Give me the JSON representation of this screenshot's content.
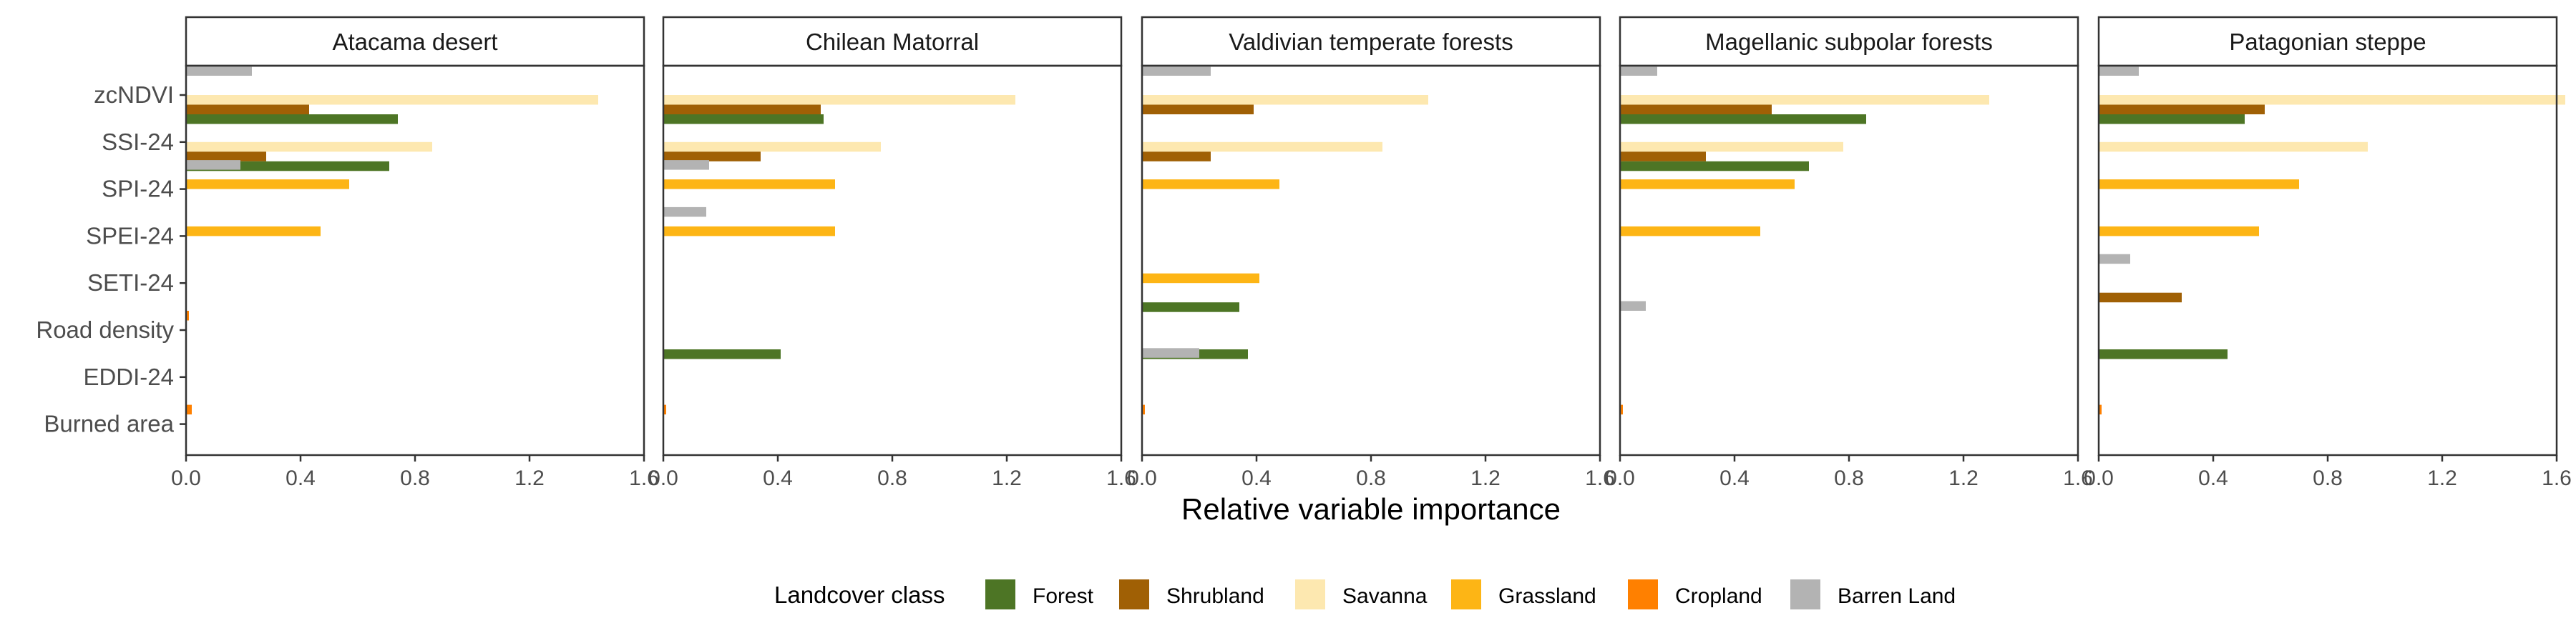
{
  "chart_data": {
    "type": "bar",
    "orientation": "horizontal",
    "facets": [
      "Atacama desert",
      "Chilean Matorral",
      "Valdivian temperate forests",
      "Magellanic subpolar forests",
      "Patagonian steppe"
    ],
    "variables": [
      "zcNDVI",
      "SSI-24",
      "SPI-24",
      "SPEI-24",
      "SETI-24",
      "Road density",
      "EDDI-24",
      "Burned area"
    ],
    "xlabel": "Relative variable importance",
    "xlim": [
      0,
      1.6
    ],
    "xticks": [
      "0.0",
      "0.4",
      "0.8",
      "1.2",
      "1.6"
    ],
    "legend_title": "Landcover class",
    "legend_position": "bottom",
    "grid": false,
    "series": [
      {
        "name": "Forest",
        "color": "#4d7525"
      },
      {
        "name": "Shrubland",
        "color": "#a06005"
      },
      {
        "name": "Savanna",
        "color": "#fde8b0"
      },
      {
        "name": "Grassland",
        "color": "#fdb515"
      },
      {
        "name": "Cropland",
        "color": "#ff8000"
      },
      {
        "name": "Barren Land",
        "color": "#b3b3b3"
      }
    ],
    "panels": [
      {
        "facet": "Atacama desert",
        "values": {
          "zcNDVI": {
            "Barren Land": 0.23,
            "Savanna": 1.44,
            "Shrubland": 0.43,
            "Forest": 0.74
          },
          "SSI-24": {
            "Savanna": 0.86,
            "Shrubland": 0.28,
            "Forest": 0.71
          },
          "SPI-24": {
            "Barren Land": 0.19,
            "Grassland": 0.57
          },
          "SPEI-24": {
            "Grassland": 0.47
          },
          "Road density": {
            "Cropland": 0.01
          },
          "Burned area": {
            "Cropland": 0.02
          }
        }
      },
      {
        "facet": "Chilean Matorral",
        "values": {
          "zcNDVI": {
            "Savanna": 1.23,
            "Shrubland": 0.55,
            "Forest": 0.56
          },
          "SSI-24": {
            "Savanna": 0.76,
            "Shrubland": 0.34
          },
          "SPI-24": {
            "Barren Land": 0.16,
            "Grassland": 0.6
          },
          "SPEI-24": {
            "Barren Land": 0.15,
            "Grassland": 0.6
          },
          "Road density": {
            "Forest": 0.41
          },
          "Burned area": {
            "Cropland": 0.01
          }
        }
      },
      {
        "facet": "Valdivian temperate forests",
        "values": {
          "zcNDVI": {
            "Barren Land": 0.24,
            "Savanna": 1.0,
            "Shrubland": 0.39
          },
          "SSI-24": {
            "Savanna": 0.84,
            "Shrubland": 0.24
          },
          "SPI-24": {
            "Grassland": 0.48
          },
          "SETI-24": {
            "Grassland": 0.41,
            "Forest": 0.34
          },
          "Road density": {
            "Forest": 0.37
          },
          "EDDI-24": {
            "Barren Land": 0.2
          },
          "Burned area": {
            "Cropland": 0.01
          }
        }
      },
      {
        "facet": "Magellanic subpolar forests",
        "values": {
          "zcNDVI": {
            "Barren Land": 0.13,
            "Savanna": 1.29,
            "Shrubland": 0.53,
            "Forest": 0.86
          },
          "SSI-24": {
            "Savanna": 0.78,
            "Shrubland": 0.3,
            "Forest": 0.66
          },
          "SPI-24": {
            "Grassland": 0.61
          },
          "SPEI-24": {
            "Grassland": 0.49
          },
          "Road density": {
            "Barren Land": 0.09
          },
          "Burned area": {
            "Cropland": 0.01
          }
        }
      },
      {
        "facet": "Patagonian steppe",
        "values": {
          "zcNDVI": {
            "Barren Land": 0.14,
            "Savanna": 1.63,
            "Shrubland": 0.58,
            "Forest": 0.51
          },
          "SSI-24": {
            "Savanna": 0.94
          },
          "SPI-24": {
            "Grassland": 0.7
          },
          "SPEI-24": {
            "Grassland": 0.56
          },
          "SETI-24": {
            "Barren Land": 0.11,
            "Shrubland": 0.29
          },
          "Road density": {
            "Forest": 0.45
          },
          "Burned area": {
            "Cropland": 0.01
          }
        }
      }
    ]
  }
}
